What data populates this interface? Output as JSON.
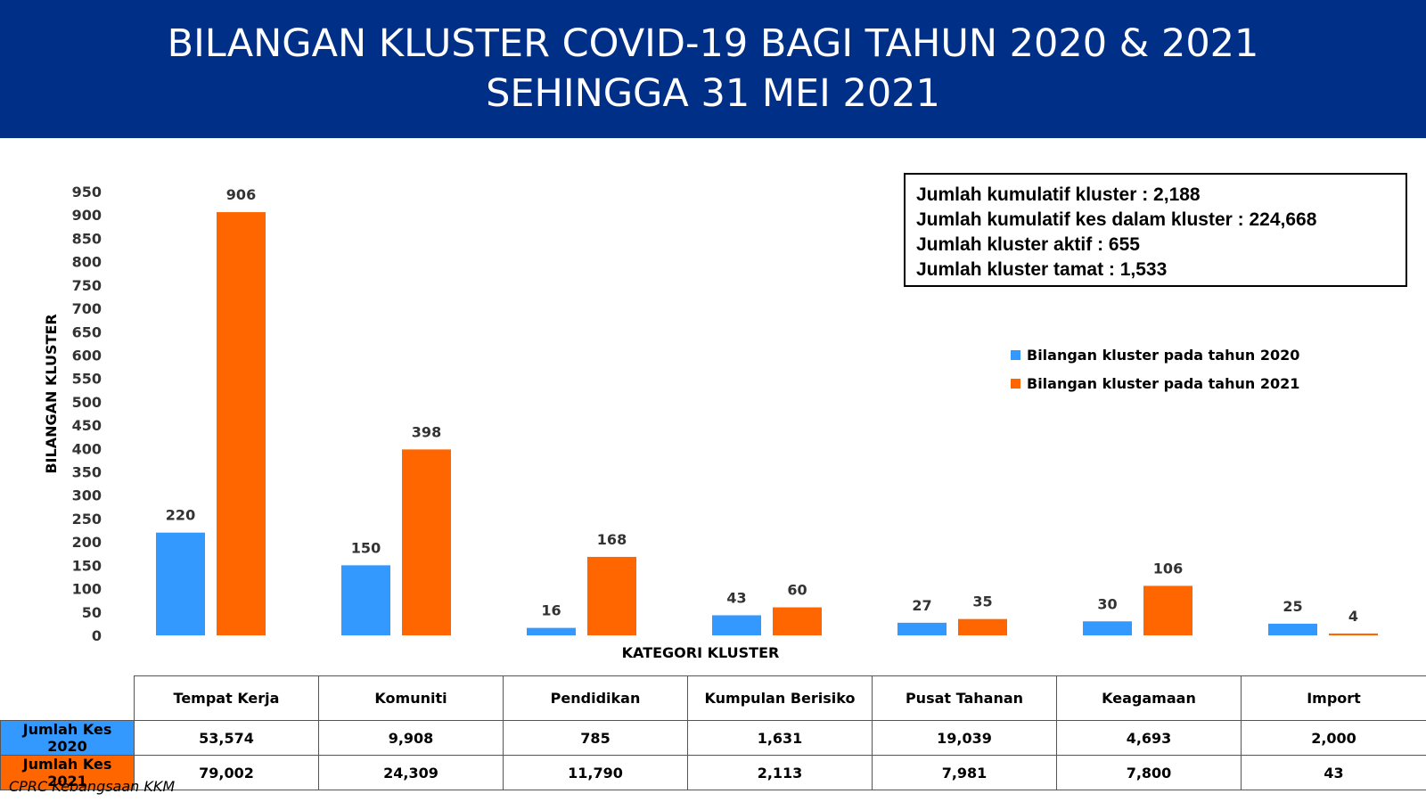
{
  "header": {
    "title_line1": "BILANGAN KLUSTER COVID-19 BAGI TAHUN 2020 & 2021",
    "title_line2": "SEHINGGA 31 MEI 2021"
  },
  "summary": {
    "line1": "Jumlah kumulatif kluster : 2,188",
    "line2": "Jumlah kumulatif kes dalam kluster : 224,668",
    "line3": "Jumlah kluster aktif : 655",
    "line4": "Jumlah kluster tamat : 1,533"
  },
  "colors": {
    "series_2020": "#3399ff",
    "series_2021": "#ff6600",
    "header_bg": "#002f87"
  },
  "chart_data": {
    "type": "bar",
    "xlabel": "KATEGORI KLUSTER",
    "ylabel": "BILANGAN KLUSTER",
    "ylim": [
      0,
      950
    ],
    "yticks": [
      0,
      50,
      100,
      150,
      200,
      250,
      300,
      350,
      400,
      450,
      500,
      550,
      600,
      650,
      700,
      750,
      800,
      850,
      900,
      950
    ],
    "grid": false,
    "legend_position": "right",
    "categories": [
      "Tempat Kerja",
      "Komuniti",
      "Pendidikan",
      "Kumpulan Berisiko",
      "Pusat Tahanan",
      "Keagamaan",
      "Import"
    ],
    "series": [
      {
        "name": "Bilangan kluster pada tahun 2020",
        "color": "#3399ff",
        "values": [
          220,
          150,
          16,
          43,
          27,
          30,
          25
        ]
      },
      {
        "name": "Bilangan kluster pada tahun 2021",
        "color": "#ff6600",
        "values": [
          906,
          398,
          168,
          60,
          35,
          106,
          4
        ]
      }
    ]
  },
  "table": {
    "headers": [
      "Tempat Kerja",
      "Komuniti",
      "Pendidikan",
      "Kumpulan Berisiko",
      "Pusat Tahanan",
      "Keagamaan",
      "Import"
    ],
    "rows": [
      {
        "label": "Jumlah Kes 2020",
        "color": "#3399ff",
        "values": [
          "53,574",
          "9,908",
          "785",
          "1,631",
          "19,039",
          "4,693",
          "2,000"
        ]
      },
      {
        "label": "Jumlah Kes 2021",
        "color": "#ff6600",
        "values": [
          "79,002",
          "24,309",
          "11,790",
          "2,113",
          "7,981",
          "7,800",
          "43"
        ]
      }
    ]
  },
  "source": "CPRC Kebangsaan KKM"
}
